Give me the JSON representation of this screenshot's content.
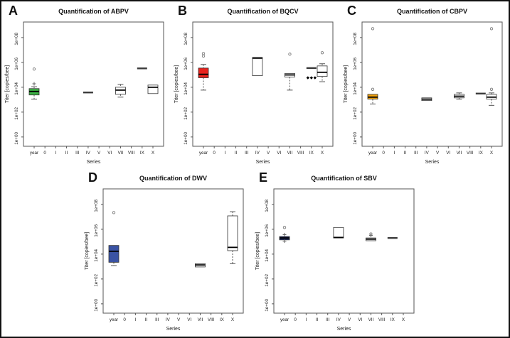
{
  "figure": {
    "description": "Five-panel boxplot figure of honey bee virus titers",
    "xlabel": "Series",
    "ylabel": "Titer [copies/bee]"
  },
  "chart_data": [
    {
      "type": "boxplot",
      "panel_letter": "A",
      "title": "Quantification of ABPV",
      "xlabel": "Series",
      "ylabel": "Titer [copies/bee]",
      "y_scale": "log10",
      "y_axis_range_log10": [
        -0.75,
        9.25
      ],
      "x_categories": [
        "year",
        "0",
        "I",
        "II",
        "III",
        "IV",
        "V",
        "VI",
        "VII",
        "VIII",
        "IX",
        "X"
      ],
      "y_ticks": [
        {
          "label": "1e+00",
          "log": 0
        },
        {
          "label": "1e+02",
          "log": 2
        },
        {
          "label": "1e+04",
          "log": 4
        },
        {
          "label": "1e+06",
          "log": 6
        },
        {
          "label": "1e+08",
          "log": 8
        }
      ],
      "boxes": [
        {
          "category": "year",
          "fill": "#3cb044",
          "lo": 1100,
          "q1": 2400,
          "median": 4600,
          "q3": 7800,
          "hi": 11000,
          "outliers": [
            {
              "value": 19000,
              "symbol": "plus"
            },
            {
              "value": 290000,
              "symbol": "circle"
            }
          ]
        },
        {
          "category": "IV",
          "flat": 3800
        },
        {
          "category": "VII",
          "fill": "#ffffff",
          "lo": 1600,
          "q1": 2700,
          "median": 5900,
          "q3": 10000,
          "hi": 17000
        },
        {
          "category": "IX",
          "flat": 330000
        },
        {
          "category": "X",
          "fill": "#ffffff",
          "lo": 3100,
          "q1": 3100,
          "median": 10000,
          "q3": 15000,
          "hi": 15000
        }
      ]
    },
    {
      "type": "boxplot",
      "panel_letter": "B",
      "title": "Quantification of BQCV",
      "xlabel": "Series",
      "ylabel": "Titer [copies/bee]",
      "y_scale": "log10",
      "y_axis_range_log10": [
        -0.75,
        9.25
      ],
      "x_categories": [
        "year",
        "0",
        "I",
        "II",
        "III",
        "IV",
        "V",
        "VI",
        "VII",
        "VIII",
        "IX",
        "X"
      ],
      "y_ticks": [
        {
          "label": "1e+00",
          "log": 0
        },
        {
          "label": "1e+02",
          "log": 2
        },
        {
          "label": "1e+04",
          "log": 4
        },
        {
          "label": "1e+06",
          "log": 6
        },
        {
          "label": "1e+08",
          "log": 8
        }
      ],
      "boxes": [
        {
          "category": "year",
          "fill": "#e8231d",
          "lo": 5900,
          "q1": 58000,
          "median": 110000,
          "q3": 350000,
          "hi": 680000,
          "outliers": [
            {
              "value": 3200000,
              "symbol": "circle"
            },
            {
              "value": 5200000,
              "symbol": "circle"
            }
          ]
        },
        {
          "category": "IV",
          "fill": "#ffffff",
          "lo": 85000,
          "q1": 85000,
          "median": 2200000,
          "q3": 2500000,
          "hi": 2500000
        },
        {
          "category": "VII",
          "fill": "#ffffff",
          "lo": 5900,
          "q1": 66000,
          "median": 98000,
          "q3": 130000,
          "hi": 130000,
          "outliers": [
            {
              "value": 4600000,
              "symbol": "circle"
            }
          ]
        },
        {
          "category": "IX",
          "flat": 350000,
          "outliers": [
            {
              "value": 58000,
              "symbol": "diamond",
              "dx": -5
            },
            {
              "value": 58000,
              "symbol": "diamond",
              "dx": 0
            },
            {
              "value": 58000,
              "symbol": "diamond",
              "dx": 5
            }
          ]
        },
        {
          "category": "X",
          "fill": "#ffffff",
          "lo": 28000,
          "q1": 74000,
          "median": 160000,
          "q3": 520000,
          "hi": 780000,
          "outliers": [
            {
              "value": 6000000,
              "symbol": "circle"
            }
          ]
        }
      ]
    },
    {
      "type": "boxplot",
      "panel_letter": "C",
      "title": "Quantification of CBPV",
      "xlabel": "Series",
      "ylabel": "Titer [copies/bee]",
      "y_scale": "log10",
      "y_axis_range_log10": [
        -0.75,
        9.25
      ],
      "x_categories": [
        "year",
        "0",
        "I",
        "II",
        "III",
        "IV",
        "V",
        "VI",
        "VII",
        "VIII",
        "IX",
        "X"
      ],
      "y_ticks": [
        {
          "label": "1e+00",
          "log": 0
        },
        {
          "label": "1e+02",
          "log": 2
        },
        {
          "label": "1e+04",
          "log": 4
        },
        {
          "label": "1e+06",
          "log": 6
        },
        {
          "label": "1e+08",
          "log": 8
        }
      ],
      "boxes": [
        {
          "category": "year",
          "fill": "#f2a20d",
          "lo": 450,
          "q1": 1100,
          "median": 1600,
          "q3": 2700,
          "hi": 2700,
          "outliers": [
            {
              "value": 6800,
              "symbol": "circle"
            },
            {
              "value": 520000000,
              "symbol": "circle"
            }
          ]
        },
        {
          "category": "IV",
          "fill": "#ffffff",
          "lo": 850,
          "q1": 850,
          "median": 1100,
          "q3": 1400,
          "hi": 1400
        },
        {
          "category": "VII",
          "fill": "#ffffff",
          "lo": 1100,
          "q1": 1400,
          "median": 1900,
          "q3": 2700,
          "hi": 3500
        },
        {
          "category": "IX",
          "flat": 3100
        },
        {
          "category": "X",
          "fill": "#ffffff",
          "lo": 350,
          "q1": 1100,
          "median": 1600,
          "q3": 2700,
          "hi": 3500,
          "outliers": [
            {
              "value": 6800,
              "symbol": "circle"
            },
            {
              "value": 520000000,
              "symbol": "circle"
            }
          ]
        }
      ]
    },
    {
      "type": "boxplot",
      "panel_letter": "D",
      "title": "Quantification of DWV",
      "xlabel": "Series",
      "ylabel": "Titer [copies/bee]",
      "y_scale": "log10",
      "y_axis_range_log10": [
        -0.75,
        9.25
      ],
      "x_categories": [
        "year",
        "0",
        "I",
        "II",
        "III",
        "IV",
        "V",
        "VI",
        "VII",
        "VIII",
        "IX",
        "X"
      ],
      "y_ticks": [
        {
          "label": "1e+00",
          "log": 0
        },
        {
          "label": "1e+02",
          "log": 2
        },
        {
          "label": "1e+04",
          "log": 4
        },
        {
          "label": "1e+06",
          "log": 6
        },
        {
          "label": "1e+08",
          "log": 8
        }
      ],
      "boxes": [
        {
          "category": "year",
          "fill": "#3a53a4",
          "lo": 1200,
          "q1": 2200,
          "median": 17000,
          "q3": 50000,
          "hi": 50000,
          "outliers": [
            {
              "value": 22000000,
              "symbol": "circle"
            }
          ]
        },
        {
          "category": "VII",
          "fill": "#ffffff",
          "lo": 930,
          "q1": 930,
          "median": 1350,
          "q3": 1700,
          "hi": 1700
        },
        {
          "category": "X",
          "fill": "#ffffff",
          "lo": 1700,
          "q1": 19000,
          "median": 35000,
          "q3": 12000000,
          "hi": 26000000
        }
      ]
    },
    {
      "type": "boxplot",
      "panel_letter": "E",
      "title": "Quantification of SBV",
      "xlabel": "Series",
      "ylabel": "Titer [copies/bee]",
      "y_scale": "log10",
      "y_axis_range_log10": [
        -0.75,
        9.25
      ],
      "x_categories": [
        "year",
        "0",
        "I",
        "II",
        "III",
        "IV",
        "V",
        "VI",
        "VII",
        "VIII",
        "IX",
        "X"
      ],
      "y_ticks": [
        {
          "label": "1e+00",
          "log": 0
        },
        {
          "label": "1e+02",
          "log": 2
        },
        {
          "label": "1e+04",
          "log": 4
        },
        {
          "label": "1e+06",
          "log": 6
        },
        {
          "label": "1e+08",
          "log": 8
        }
      ],
      "boxes": [
        {
          "category": "year",
          "fill": "#1b2a68",
          "lo": 140000,
          "q1": 140000,
          "median": 200000,
          "q3": 260000,
          "hi": 260000,
          "outliers": [
            {
              "value": 110000,
              "symbol": "plus"
            },
            {
              "value": 370000,
              "symbol": "plus"
            },
            {
              "value": 1400000,
              "symbol": "circle"
            }
          ]
        },
        {
          "category": "IV",
          "fill": "#ffffff",
          "lo": 200000,
          "q1": 200000,
          "median": 220000,
          "q3": 1400000,
          "hi": 1400000
        },
        {
          "category": "VII",
          "fill": "#ffffff",
          "lo": 120000,
          "q1": 120000,
          "median": 160000,
          "q3": 200000,
          "hi": 200000,
          "outliers": [
            {
              "value": 320000,
              "symbol": "plus"
            },
            {
              "value": 420000,
              "symbol": "circle"
            }
          ]
        },
        {
          "category": "IX",
          "flat": 200000
        }
      ]
    }
  ]
}
